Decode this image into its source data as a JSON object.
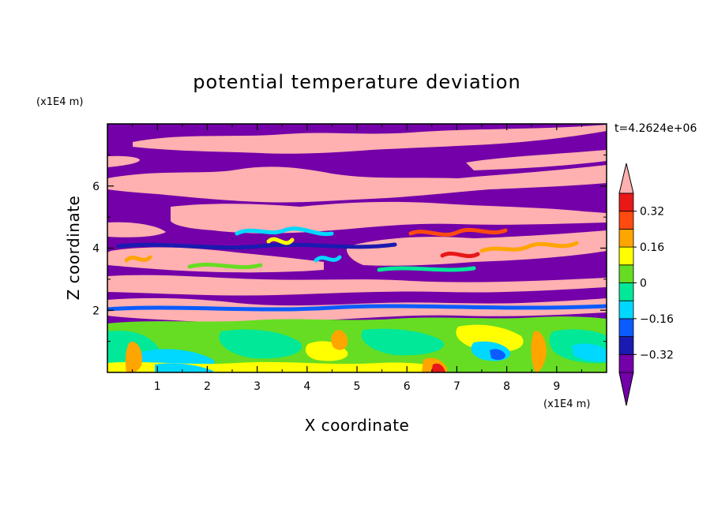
{
  "chart_data": {
    "type": "heatmap",
    "title": "potential temperature deviation",
    "xlabel": "X coordinate",
    "ylabel": "Z coordinate",
    "x_unit": "(x1E4 m)",
    "z_unit": "(x1E4 m)",
    "time_label": "t=4.2624e+06",
    "xlim": [
      0,
      10
    ],
    "ylim": [
      0,
      8
    ],
    "x_ticks": [
      "1",
      "2",
      "3",
      "4",
      "5",
      "6",
      "7",
      "8",
      "9"
    ],
    "y_ticks": [
      "2",
      "4",
      "6"
    ],
    "colorbar": {
      "levels": [
        -0.4,
        -0.32,
        -0.24,
        -0.16,
        -0.08,
        0,
        0.08,
        0.16,
        0.24,
        0.32,
        0.4
      ],
      "labels": [
        "0.32",
        "0.16",
        "0",
        "-0.16",
        "-0.32"
      ],
      "label_values": [
        0.32,
        0.16,
        0,
        -0.16,
        -0.32
      ],
      "colors": [
        "#7300a8",
        "#1a1ab0",
        "#0a5cff",
        "#00d8ff",
        "#00e898",
        "#66dd22",
        "#ffff00",
        "#ffa500",
        "#ff4a10",
        "#e81818",
        "#ffb0b0"
      ],
      "extend": "both"
    },
    "field_bands": [
      {
        "z_range": [
          0,
          1.5
        ],
        "dominant": "green/cyan with yellow cells"
      },
      {
        "z_range": [
          1.5,
          5.5
        ],
        "dominant": "alternating purple and pink layers with turbulent mixing"
      },
      {
        "z_range": [
          5.5,
          8
        ],
        "dominant": "purple and pink stratified bands"
      }
    ]
  }
}
